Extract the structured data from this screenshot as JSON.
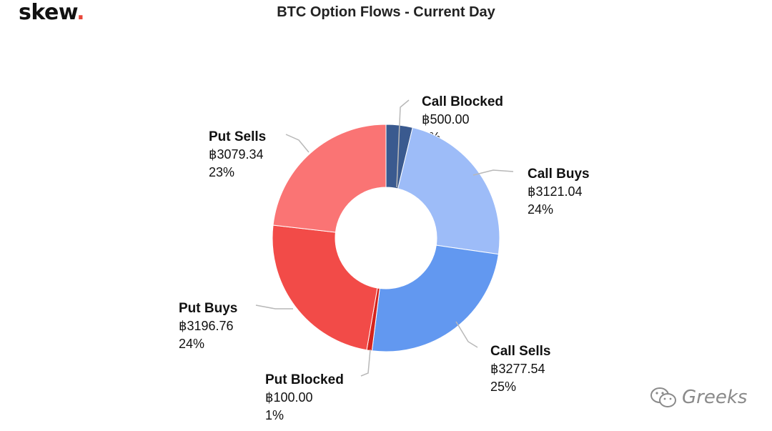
{
  "brand": {
    "name": "skew",
    "dot": "."
  },
  "watermark": {
    "text": "Greeks",
    "icon": "wechat-icon"
  },
  "chart_data": {
    "type": "pie",
    "donut": true,
    "title": "BTC Option Flows - Current Day",
    "currency_symbol": "฿",
    "slices": [
      {
        "name": "Call Blocked",
        "value": 500.0,
        "value_label": "฿500.00",
        "percent_label": "4%",
        "color": "#3a5a8f"
      },
      {
        "name": "Call Buys",
        "value": 3121.04,
        "value_label": "฿3121.04",
        "percent_label": "24%",
        "color": "#9dbcf8"
      },
      {
        "name": "Call Sells",
        "value": 3277.54,
        "value_label": "฿3277.54",
        "percent_label": "25%",
        "color": "#6298f0"
      },
      {
        "name": "Put Blocked",
        "value": 100.0,
        "value_label": "฿100.00",
        "percent_label": "1%",
        "color": "#d4241e"
      },
      {
        "name": "Put Buys",
        "value": 3196.76,
        "value_label": "฿3196.76",
        "percent_label": "24%",
        "color": "#f24b48"
      },
      {
        "name": "Put Sells",
        "value": 3079.34,
        "value_label": "฿3079.34",
        "percent_label": "23%",
        "color": "#fa7474"
      }
    ]
  }
}
